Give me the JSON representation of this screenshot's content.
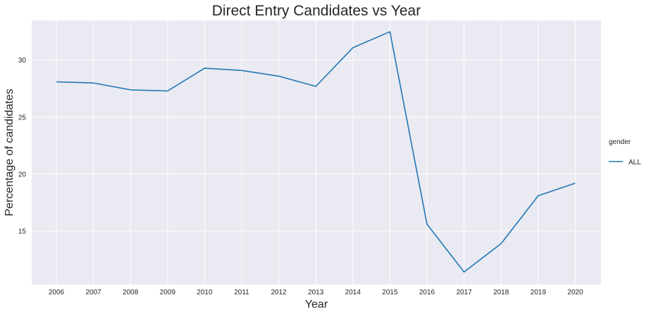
{
  "chart_data": {
    "type": "line",
    "title": "Direct Entry Candidates vs Year",
    "xlabel": "Year",
    "ylabel": "Percentage of candidates",
    "x": [
      "2006",
      "2007",
      "2008",
      "2009",
      "2010",
      "2011",
      "2012",
      "2013",
      "2014",
      "2015",
      "2016",
      "2017",
      "2018",
      "2019",
      "2020"
    ],
    "series": [
      {
        "name": "ALL",
        "values": [
          28.1,
          28.0,
          27.4,
          27.3,
          29.3,
          29.1,
          28.6,
          27.7,
          31.1,
          32.5,
          15.6,
          11.4,
          13.9,
          18.1,
          19.2
        ],
        "color": "#1f77b4"
      }
    ],
    "yticks": [
      15,
      20,
      25,
      30
    ],
    "ylim": [
      10.3,
      33.5
    ],
    "grid": true,
    "background_color": "#eaeaf2",
    "legend": {
      "title": "gender",
      "placement": "right"
    }
  }
}
